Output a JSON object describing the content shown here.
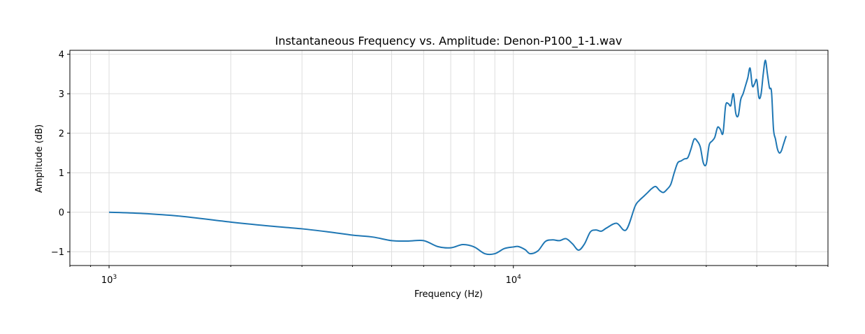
{
  "chart_data": {
    "type": "line",
    "title": "Instantaneous Frequency vs. Amplitude: Denon-P100_1-1.wav",
    "xlabel": "Frequency (Hz)",
    "ylabel": "Amplitude (dB)",
    "x_scale": "log",
    "xlim": [
      800,
      60000
    ],
    "ylim": [
      -1.35,
      4.1
    ],
    "x_tick_values": [
      1000,
      10000
    ],
    "x_tick_labels": [
      {
        "base": "10",
        "exp": "3"
      },
      {
        "base": "10",
        "exp": "4"
      }
    ],
    "y_ticks": [
      -1,
      0,
      1,
      2,
      3,
      4
    ],
    "grid": true,
    "legend": "none",
    "series": [
      {
        "color": "#1f77b4",
        "x": [
          1000,
          1200,
          1500,
          2000,
          2500,
          3000,
          3500,
          4000,
          4500,
          5000,
          5500,
          6000,
          6500,
          7000,
          7500,
          8000,
          8500,
          9000,
          9500,
          10000,
          10300,
          10700,
          11000,
          11500,
          12000,
          12500,
          13000,
          13500,
          14000,
          14500,
          15000,
          15500,
          16000,
          16500,
          17000,
          18000,
          19000,
          20000,
          20500,
          21000,
          21500,
          22000,
          22500,
          23000,
          23500,
          24000,
          24500,
          25000,
          25500,
          26000,
          26500,
          27000,
          27500,
          28000,
          28500,
          29000,
          29500,
          30000,
          30500,
          31000,
          31500,
          32000,
          32500,
          33000,
          33500,
          34000,
          34500,
          35000,
          35500,
          36000,
          36500,
          37000,
          37500,
          38000,
          38500,
          39000,
          39500,
          40000,
          40500,
          41000,
          41500,
          42000,
          42500,
          43000,
          43500,
          44000,
          44500,
          45000,
          45500,
          46000,
          46500,
          47000,
          47300
        ],
        "y": [
          0.0,
          -0.03,
          -0.1,
          -0.25,
          -0.35,
          -0.42,
          -0.5,
          -0.58,
          -0.63,
          -0.72,
          -0.73,
          -0.72,
          -0.87,
          -0.9,
          -0.82,
          -0.88,
          -1.05,
          -1.05,
          -0.92,
          -0.88,
          -0.87,
          -0.95,
          -1.05,
          -0.98,
          -0.74,
          -0.7,
          -0.72,
          -0.67,
          -0.8,
          -0.96,
          -0.8,
          -0.5,
          -0.45,
          -0.48,
          -0.4,
          -0.28,
          -0.45,
          0.15,
          0.3,
          0.4,
          0.5,
          0.6,
          0.65,
          0.55,
          0.5,
          0.58,
          0.7,
          1.0,
          1.25,
          1.3,
          1.35,
          1.38,
          1.6,
          1.85,
          1.8,
          1.65,
          1.25,
          1.22,
          1.7,
          1.8,
          1.9,
          2.15,
          2.1,
          2.0,
          2.7,
          2.75,
          2.7,
          3.0,
          2.5,
          2.45,
          2.85,
          3.0,
          3.2,
          3.4,
          3.65,
          3.2,
          3.25,
          3.35,
          2.9,
          3.0,
          3.5,
          3.85,
          3.5,
          3.15,
          3.05,
          2.1,
          1.85,
          1.6,
          1.5,
          1.55,
          1.7,
          1.85,
          1.93
        ]
      }
    ]
  }
}
